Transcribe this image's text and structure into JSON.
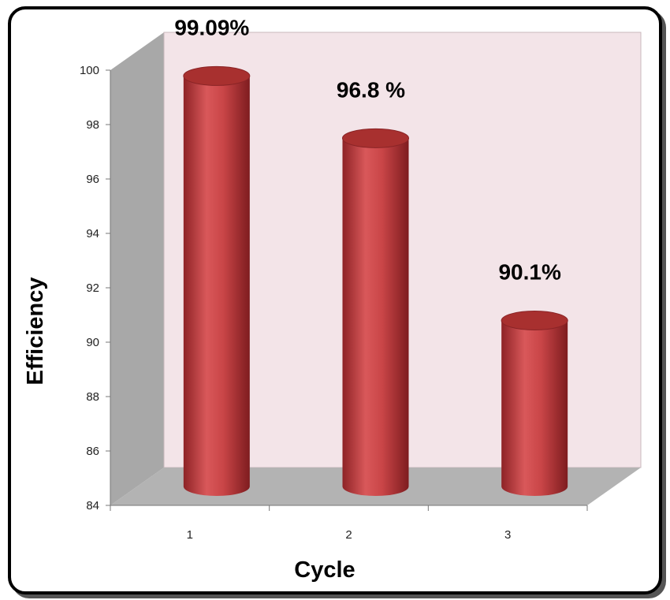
{
  "chart_data": {
    "type": "bar",
    "categories": [
      "1",
      "2",
      "3"
    ],
    "values": [
      99.09,
      96.8,
      90.1
    ],
    "data_labels": [
      "99.09%",
      "96.8 %",
      "90.1%"
    ],
    "title": "",
    "xlabel": "Cycle",
    "ylabel": "Efficiency",
    "ylim": [
      84,
      100
    ],
    "yticks": [
      "84",
      "86",
      "88",
      "90",
      "92",
      "94",
      "96",
      "98",
      "100"
    ],
    "grid": false,
    "legend": "none",
    "style": "3d-cylinder",
    "colors": {
      "bar": "#c0393b",
      "back_wall": "#f3e4e8",
      "side_wall": "#a8a8a8",
      "floor": "#b3b3b3"
    }
  }
}
